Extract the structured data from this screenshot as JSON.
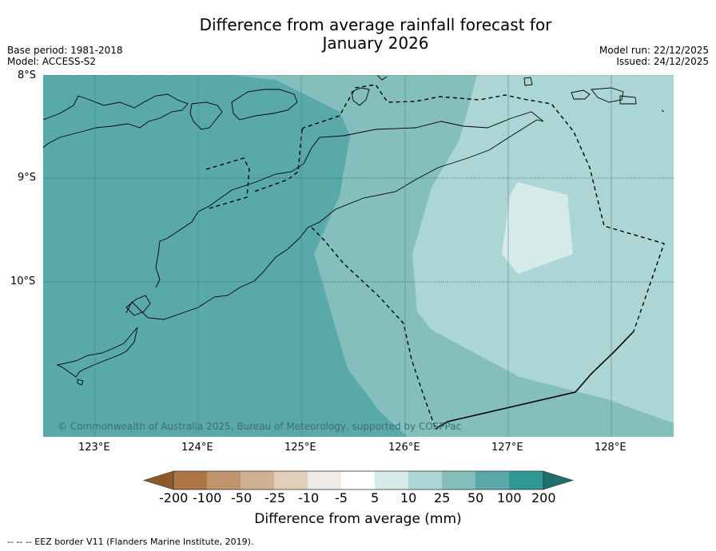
{
  "title": {
    "line1": "Difference from average rainfall forecast for",
    "line2": "January 2026"
  },
  "meta_left": {
    "base_period": "Base period: 1981-2018",
    "model": "Model: ACCESS-S2"
  },
  "meta_right": {
    "model_run": "Model run: 22/12/2025",
    "issued": "Issued: 24/12/2025"
  },
  "lat_labels": [
    "8°S",
    "9°S",
    "10°S"
  ],
  "lon_labels": [
    "123°E",
    "124°E",
    "125°E",
    "126°E",
    "127°E",
    "128°E"
  ],
  "copyright": "© Commonwealth of Australia 2025, Bureau of Meteorology, supported by COSPPac",
  "colorbar": {
    "labels": [
      "-200",
      "-100",
      "-50",
      "-25",
      "-10",
      "-5",
      "5",
      "10",
      "25",
      "50",
      "100",
      "200"
    ],
    "colors": [
      "#8c5a2a",
      "#ad7542",
      "#c0946c",
      "#d2b192",
      "#e2cfbb",
      "#efebe7",
      "#ffffff",
      "#d4ebe9",
      "#acd6d5",
      "#84bfbe",
      "#5aa9aa",
      "#2e9895",
      "#1f6f6c"
    ],
    "title": "Difference from average (mm)"
  },
  "footnote": "--  --  -- EEZ border V11 (Flanders Marine Institute, 2019).",
  "palette": {
    "deep": "#5aa9aa",
    "mid": "#84bfbe",
    "light": "#acd6d5",
    "lightest": "#d4ebe9"
  }
}
